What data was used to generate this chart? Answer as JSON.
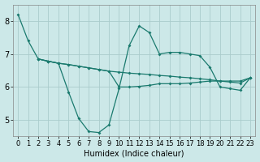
{
  "xlabel": "Humidex (Indice chaleur)",
  "background_color": "#cce8e8",
  "grid_color": "#aacccc",
  "line_color": "#1a7a6e",
  "xlim": [
    -0.5,
    23.5
  ],
  "ylim": [
    4.5,
    8.5
  ],
  "yticks": [
    5,
    6,
    7,
    8
  ],
  "xtick_labels": [
    "0",
    "1",
    "2",
    "3",
    "4",
    "5",
    "6",
    "7",
    "8",
    "9",
    "10",
    "11",
    "12",
    "13",
    "14",
    "15",
    "16",
    "17",
    "18",
    "19",
    "20",
    "21",
    "22",
    "23"
  ],
  "line1_x": [
    0,
    1,
    2,
    3,
    4,
    5,
    6,
    7,
    8,
    9,
    10,
    11,
    12,
    13,
    14,
    15,
    16,
    17,
    18,
    19,
    20,
    21,
    22,
    23
  ],
  "line1_y": [
    8.2,
    7.4,
    6.85,
    6.78,
    6.72,
    6.68,
    6.63,
    6.58,
    6.53,
    6.48,
    6.45,
    6.42,
    6.4,
    6.38,
    6.35,
    6.33,
    6.3,
    6.28,
    6.25,
    6.22,
    6.18,
    6.15,
    6.12,
    6.28
  ],
  "line2_x": [
    2,
    3,
    4,
    5,
    6,
    7,
    8,
    9,
    10,
    11,
    12,
    13,
    14,
    15,
    16,
    17,
    18,
    19,
    20,
    21,
    22,
    23
  ],
  "line2_y": [
    6.85,
    6.78,
    6.72,
    5.85,
    5.05,
    4.65,
    4.62,
    4.85,
    5.95,
    7.25,
    7.85,
    7.65,
    7.0,
    7.05,
    7.05,
    7.0,
    6.95,
    6.6,
    6.0,
    5.95,
    5.9,
    6.28
  ],
  "line3_x": [
    2,
    3,
    4,
    5,
    6,
    7,
    8,
    9,
    10,
    11,
    12,
    13,
    14,
    15,
    16,
    17,
    18,
    19,
    20,
    21,
    22,
    23
  ],
  "line3_y": [
    6.85,
    6.78,
    6.72,
    6.68,
    6.63,
    6.58,
    6.53,
    6.48,
    6.0,
    6.0,
    6.02,
    6.05,
    6.1,
    6.1,
    6.1,
    6.12,
    6.15,
    6.18,
    6.18,
    6.18,
    6.18,
    6.28
  ],
  "marker": "D",
  "markersize": 2.0,
  "linewidth": 0.9,
  "font_size": 7,
  "tick_font_size": 6
}
